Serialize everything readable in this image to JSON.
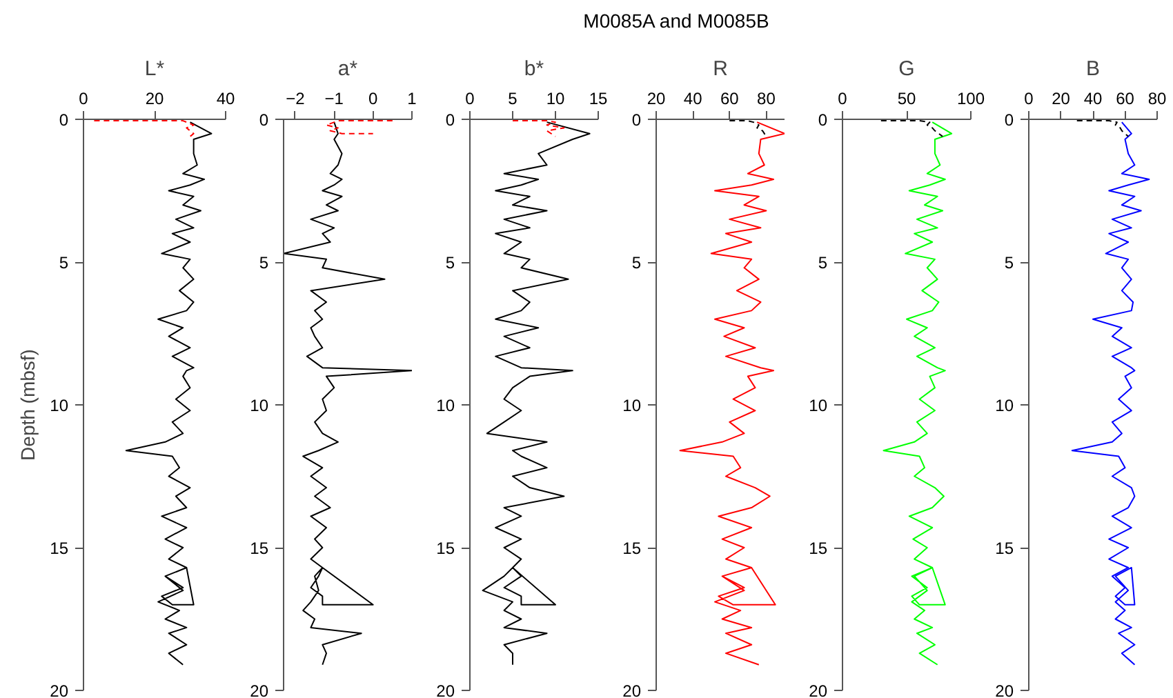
{
  "chart_data": [
    {
      "type": "line",
      "title": "L*",
      "ylabel": "Depth (mbsf)",
      "annotations": [
        "M0085A and M0085B"
      ],
      "xlim": [
        0,
        40
      ],
      "xticks": [
        0,
        20,
        40
      ],
      "ylim": [
        20,
        0
      ],
      "yticks": [
        0,
        5,
        10,
        15,
        20
      ],
      "series": [
        {
          "color": "#000000",
          "x": [
            30,
            36,
            31,
            31,
            32,
            28,
            34,
            30,
            24,
            31,
            28,
            33,
            26,
            31,
            25,
            30,
            22,
            30,
            28,
            31,
            27,
            31,
            29,
            21,
            28,
            24,
            30,
            25,
            31,
            29,
            28,
            30,
            26,
            30,
            25,
            28,
            23,
            12,
            25,
            27,
            24,
            30,
            26,
            29,
            22,
            29,
            23,
            28,
            24,
            29,
            23,
            28,
            22,
            25,
            31,
            29,
            23,
            28,
            21,
            27,
            23,
            29,
            24,
            29,
            24,
            28
          ],
          "values": [
            0.1,
            0.5,
            0.7,
            1.2,
            1.6,
            1.9,
            2.1,
            2.3,
            2.5,
            2.7,
            3.0,
            3.2,
            3.5,
            3.8,
            4.0,
            4.3,
            4.7,
            4.9,
            5.2,
            5.6,
            6.0,
            6.4,
            6.7,
            7.0,
            7.3,
            7.6,
            8.0,
            8.3,
            8.7,
            8.8,
            9.0,
            9.4,
            9.8,
            10.2,
            10.6,
            11.0,
            11.3,
            11.6,
            11.8,
            12.2,
            12.5,
            12.9,
            13.2,
            13.6,
            13.9,
            14.3,
            14.7,
            15.0,
            15.4,
            15.7,
            16.0,
            16.4,
            16.7,
            17.0,
            17.0,
            15.7,
            16.0,
            16.5,
            16.9,
            17.2,
            17.5,
            17.8,
            18.0,
            18.4,
            18.7,
            19.1
          ]
        },
        {
          "color": "#ff0000",
          "line_style": "dashed",
          "x": [
            3,
            28,
            29,
            31,
            29,
            31,
            30
          ],
          "values": [
            0.05,
            0.05,
            0.1,
            0.2,
            0.3,
            0.5,
            0.6
          ]
        }
      ]
    },
    {
      "type": "line",
      "title": "a*",
      "xlim": [
        -2.3,
        1
      ],
      "xticks": [
        -2,
        -1,
        0,
        1
      ],
      "ylim": [
        20,
        0
      ],
      "yticks": [
        0,
        5,
        10,
        15,
        20
      ],
      "series": [
        {
          "color": "#000000",
          "x": [
            -1.0,
            -0.9,
            -1.0,
            -0.8,
            -0.9,
            -1.1,
            -0.8,
            -1.0,
            -1.3,
            -0.8,
            -1.2,
            -0.9,
            -1.6,
            -1.0,
            -1.3,
            -1.1,
            -2.3,
            -1.2,
            -1.3,
            0.3,
            -1.6,
            -1.2,
            -1.5,
            -1.3,
            -1.6,
            -1.5,
            -1.3,
            -1.7,
            -1.3,
            1.0,
            -1.2,
            -1.0,
            -1.3,
            -1.2,
            -1.5,
            -1.3,
            -0.9,
            -1.4,
            -1.8,
            -1.3,
            -1.6,
            -1.2,
            -1.5,
            -1.1,
            -1.6,
            -1.2,
            -1.5,
            -1.3,
            -1.6,
            -1.3,
            -1.4,
            -1.6,
            -1.3,
            -1.3,
            0.0,
            -1.3,
            -1.5,
            -1.4,
            -1.6,
            -1.8,
            -1.5,
            -1.6,
            -0.3,
            -1.3,
            -1.2,
            -1.3
          ],
          "values": [
            0.1,
            0.5,
            0.7,
            1.2,
            1.6,
            1.9,
            2.1,
            2.3,
            2.5,
            2.7,
            3.0,
            3.2,
            3.5,
            3.8,
            4.0,
            4.3,
            4.7,
            4.9,
            5.2,
            5.6,
            6.0,
            6.4,
            6.7,
            7.0,
            7.3,
            7.6,
            8.0,
            8.3,
            8.7,
            8.8,
            9.0,
            9.4,
            9.8,
            10.2,
            10.6,
            11.0,
            11.3,
            11.6,
            11.8,
            12.2,
            12.5,
            12.9,
            13.2,
            13.6,
            13.9,
            14.3,
            14.7,
            15.0,
            15.4,
            15.7,
            16.0,
            16.4,
            16.7,
            17.0,
            17.0,
            15.7,
            16.0,
            16.5,
            16.9,
            17.2,
            17.5,
            17.8,
            18.0,
            18.4,
            18.7,
            19.1
          ]
        },
        {
          "color": "#ff0000",
          "line_style": "dashed",
          "x": [
            0.5,
            -0.9,
            -1.2,
            -0.9,
            -1.1,
            -0.8,
            0.0
          ],
          "values": [
            0.05,
            0.05,
            0.2,
            0.3,
            0.4,
            0.5,
            0.5
          ]
        }
      ]
    },
    {
      "type": "line",
      "title": "b*",
      "xlim": [
        0,
        15
      ],
      "xticks": [
        0,
        5,
        10,
        15
      ],
      "ylim": [
        20,
        0
      ],
      "yticks": [
        0,
        5,
        10,
        15,
        20
      ],
      "series": [
        {
          "color": "#000000",
          "x": [
            9,
            14,
            12,
            8,
            9,
            4,
            8,
            6,
            3,
            7,
            5,
            9,
            4,
            7,
            3,
            6,
            4,
            7,
            6,
            11.5,
            5,
            7,
            6,
            3,
            8,
            4,
            7,
            3,
            6,
            12,
            7,
            5,
            4,
            6,
            4,
            2,
            9,
            5,
            6,
            9,
            5,
            7,
            11,
            4,
            6,
            3,
            6,
            4,
            6,
            5,
            6,
            4,
            6,
            6,
            10,
            5,
            4,
            1.5,
            5,
            4,
            6,
            4,
            9,
            4,
            5,
            5
          ],
          "values": [
            0.1,
            0.5,
            0.7,
            1.2,
            1.6,
            1.9,
            2.1,
            2.3,
            2.5,
            2.7,
            3.0,
            3.2,
            3.5,
            3.8,
            4.0,
            4.3,
            4.7,
            4.9,
            5.2,
            5.6,
            6.0,
            6.4,
            6.7,
            7.0,
            7.3,
            7.6,
            8.0,
            8.3,
            8.7,
            8.8,
            9.0,
            9.4,
            9.8,
            10.2,
            10.6,
            11.0,
            11.3,
            11.6,
            11.8,
            12.2,
            12.5,
            12.9,
            13.2,
            13.6,
            13.9,
            14.3,
            14.7,
            15.0,
            15.4,
            15.7,
            16.0,
            16.4,
            16.7,
            17.0,
            17.0,
            15.7,
            16.0,
            16.5,
            16.9,
            17.2,
            17.5,
            17.8,
            18.0,
            18.4,
            18.7,
            19.1
          ]
        },
        {
          "color": "#ff0000",
          "line_style": "dashed",
          "x": [
            5,
            9,
            10,
            9,
            11,
            9,
            10
          ],
          "values": [
            0.05,
            0.05,
            0.1,
            0.2,
            0.3,
            0.4,
            0.6
          ]
        }
      ]
    },
    {
      "type": "line",
      "title": "R",
      "xlim": [
        20,
        90
      ],
      "xticks": [
        20,
        40,
        60,
        80
      ],
      "ylim": [
        20,
        0
      ],
      "yticks": [
        0,
        5,
        10,
        15,
        20
      ],
      "series": [
        {
          "color": "#ff0000",
          "x": [
            75,
            90,
            77,
            76,
            79,
            70,
            84,
            72,
            52,
            76,
            68,
            80,
            60,
            77,
            58,
            72,
            50,
            72,
            68,
            76,
            64,
            77,
            72,
            52,
            68,
            57,
            74,
            58,
            77,
            84,
            70,
            74,
            62,
            74,
            60,
            68,
            56,
            33,
            62,
            66,
            58,
            74,
            82,
            72,
            54,
            72,
            56,
            68,
            58,
            72,
            56,
            68,
            54,
            62,
            85,
            72,
            56,
            68,
            52,
            66,
            56,
            72,
            58,
            72,
            58,
            76
          ],
          "values": [
            0.1,
            0.5,
            0.7,
            1.2,
            1.6,
            1.9,
            2.1,
            2.3,
            2.5,
            2.7,
            3.0,
            3.2,
            3.5,
            3.8,
            4.0,
            4.3,
            4.7,
            4.9,
            5.2,
            5.6,
            6.0,
            6.4,
            6.7,
            7.0,
            7.3,
            7.6,
            8.0,
            8.3,
            8.7,
            8.8,
            9.0,
            9.4,
            9.8,
            10.2,
            10.6,
            11.0,
            11.3,
            11.6,
            11.8,
            12.2,
            12.5,
            12.9,
            13.2,
            13.6,
            13.9,
            14.3,
            14.7,
            15.0,
            15.4,
            15.7,
            16.0,
            16.4,
            16.7,
            17.0,
            17.0,
            15.7,
            16.0,
            16.5,
            16.9,
            17.2,
            17.5,
            17.8,
            18.0,
            18.4,
            18.7,
            19.1
          ]
        },
        {
          "color": "#000000",
          "line_style": "dashed",
          "x": [
            60,
            70,
            73,
            76,
            75,
            78,
            80
          ],
          "values": [
            0.05,
            0.05,
            0.1,
            0.2,
            0.3,
            0.4,
            0.6
          ]
        }
      ]
    },
    {
      "type": "line",
      "title": "G",
      "xlim": [
        0,
        100
      ],
      "xticks": [
        0,
        50,
        100
      ],
      "ylim": [
        20,
        0
      ],
      "yticks": [
        0,
        5,
        10,
        15,
        20
      ],
      "series": [
        {
          "color": "#00ff00",
          "x": [
            70,
            85,
            72,
            72,
            76,
            66,
            80,
            68,
            52,
            74,
            64,
            78,
            58,
            74,
            56,
            70,
            49,
            72,
            66,
            74,
            62,
            75,
            70,
            50,
            66,
            56,
            72,
            58,
            74,
            80,
            68,
            72,
            60,
            72,
            58,
            66,
            56,
            32,
            60,
            64,
            56,
            72,
            79,
            70,
            52,
            70,
            55,
            66,
            56,
            70,
            54,
            66,
            54,
            60,
            80,
            70,
            56,
            66,
            54,
            64,
            56,
            70,
            58,
            72,
            60,
            74
          ],
          "values": [
            0.1,
            0.5,
            0.7,
            1.2,
            1.6,
            1.9,
            2.1,
            2.3,
            2.5,
            2.7,
            3.0,
            3.2,
            3.5,
            3.8,
            4.0,
            4.3,
            4.7,
            4.9,
            5.2,
            5.6,
            6.0,
            6.4,
            6.7,
            7.0,
            7.3,
            7.6,
            8.0,
            8.3,
            8.7,
            8.8,
            9.0,
            9.4,
            9.8,
            10.2,
            10.6,
            11.0,
            11.3,
            11.6,
            11.8,
            12.2,
            12.5,
            12.9,
            13.2,
            13.6,
            13.9,
            14.3,
            14.7,
            15.0,
            15.4,
            15.7,
            16.0,
            16.4,
            16.7,
            17.0,
            17.0,
            15.7,
            16.0,
            16.5,
            16.9,
            17.2,
            17.5,
            17.8,
            18.0,
            18.4,
            18.7,
            19.1
          ]
        },
        {
          "color": "#000000",
          "line_style": "dashed",
          "x": [
            30,
            60,
            68,
            66,
            70,
            72,
            78
          ],
          "values": [
            0.05,
            0.05,
            0.1,
            0.2,
            0.3,
            0.4,
            0.6
          ]
        }
      ]
    },
    {
      "type": "line",
      "title": "B",
      "xlim": [
        0,
        80
      ],
      "xticks": [
        0,
        20,
        40,
        60,
        80
      ],
      "ylim": [
        20,
        0
      ],
      "yticks": [
        0,
        5,
        10,
        15,
        20
      ],
      "series": [
        {
          "color": "#0000ff",
          "x": [
            58,
            64,
            60,
            62,
            66,
            58,
            75,
            62,
            50,
            66,
            58,
            70,
            52,
            64,
            50,
            62,
            48,
            62,
            58,
            64,
            58,
            65,
            64,
            40,
            58,
            52,
            64,
            52,
            64,
            66,
            60,
            64,
            56,
            64,
            52,
            58,
            52,
            27,
            56,
            60,
            52,
            64,
            66,
            62,
            52,
            64,
            50,
            62,
            50,
            62,
            52,
            60,
            54,
            60,
            66,
            64,
            54,
            62,
            54,
            60,
            54,
            64,
            56,
            66,
            58,
            66
          ],
          "values": [
            0.1,
            0.5,
            0.7,
            1.2,
            1.6,
            1.9,
            2.1,
            2.3,
            2.5,
            2.7,
            3.0,
            3.2,
            3.5,
            3.8,
            4.0,
            4.3,
            4.7,
            4.9,
            5.2,
            5.6,
            6.0,
            6.4,
            6.7,
            7.0,
            7.3,
            7.6,
            8.0,
            8.3,
            8.7,
            8.8,
            9.0,
            9.4,
            9.8,
            10.2,
            10.6,
            11.0,
            11.3,
            11.6,
            11.8,
            12.2,
            12.5,
            12.9,
            13.2,
            13.6,
            13.9,
            14.3,
            14.7,
            15.0,
            15.4,
            15.7,
            16.0,
            16.4,
            16.7,
            17.0,
            17.0,
            15.7,
            16.0,
            16.5,
            16.9,
            17.2,
            17.5,
            17.8,
            18.0,
            18.4,
            18.7,
            19.1
          ]
        },
        {
          "color": "#000000",
          "line_style": "dashed",
          "x": [
            30,
            50,
            55,
            54,
            57,
            58,
            62
          ],
          "values": [
            0.05,
            0.05,
            0.1,
            0.2,
            0.3,
            0.4,
            0.6
          ]
        }
      ]
    }
  ]
}
